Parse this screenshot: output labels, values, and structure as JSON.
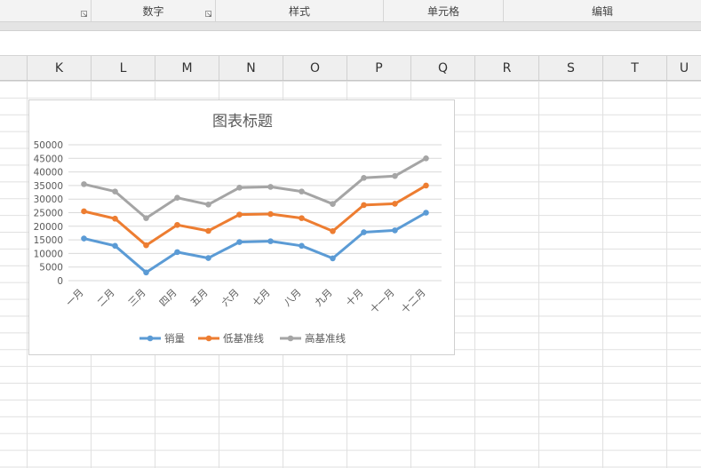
{
  "ribbon": {
    "groups": [
      {
        "label": ""
      },
      {
        "label": "数字"
      },
      {
        "label": "样式"
      },
      {
        "label": "单元格"
      },
      {
        "label": "编辑"
      }
    ]
  },
  "columns": [
    "K",
    "L",
    "M",
    "N",
    "O",
    "P",
    "Q",
    "R",
    "S",
    "T",
    "U"
  ],
  "colors": {
    "sales": "#5b9bd5",
    "low": "#ed7d31",
    "high": "#a5a5a5",
    "gridline": "#d9d9d9"
  },
  "chart_data": {
    "type": "line",
    "title": "图表标题",
    "categories": [
      "一月",
      "二月",
      "三月",
      "四月",
      "五月",
      "六月",
      "七月",
      "八月",
      "九月",
      "十月",
      "十一月",
      "十二月"
    ],
    "yticks": [
      "0",
      "5000",
      "10000",
      "15000",
      "20000",
      "25000",
      "30000",
      "35000",
      "40000",
      "45000",
      "50000"
    ],
    "ylim": [
      0,
      50000
    ],
    "grid": true,
    "legend_position": "bottom",
    "series": [
      {
        "name": "销量",
        "color": "#5b9bd5",
        "values": [
          15500,
          12800,
          3000,
          10500,
          8300,
          14200,
          14500,
          12800,
          8200,
          17800,
          18500,
          25000
        ]
      },
      {
        "name": "低基准线",
        "color": "#ed7d31",
        "values": [
          25500,
          22800,
          13000,
          20500,
          18300,
          24300,
          24500,
          23000,
          18200,
          27800,
          28300,
          35000
        ]
      },
      {
        "name": "高基准线",
        "color": "#a5a5a5",
        "values": [
          35500,
          32800,
          23000,
          30500,
          28000,
          34200,
          34500,
          32800,
          28200,
          37800,
          38500,
          45000
        ]
      }
    ]
  }
}
